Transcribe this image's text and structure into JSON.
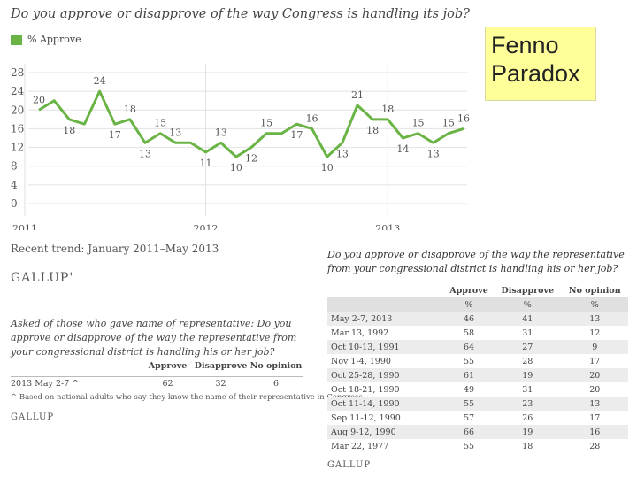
{
  "title": "Do you approve or disapprove of the way Congress is handling its job?",
  "legend_label": "% Approve",
  "recent_trend": "Recent trend: January 2011–May 2013",
  "gallup": "GALLUP",
  "gallup_reg": "GALLUP'",
  "fenno": {
    "line1": "Fenno",
    "line2": "Paradox"
  },
  "colors": {
    "line": "#6ab446",
    "grid": "#e2e2e2",
    "highlight": "#ffff99"
  },
  "chart_data": {
    "type": "line",
    "x_labels": [
      "2011",
      "2012",
      "2013"
    ],
    "y_ticks": [
      0,
      4,
      8,
      12,
      16,
      20,
      24,
      28
    ],
    "ylim": [
      0,
      28
    ],
    "grid": true,
    "series": [
      {
        "name": "% Approve",
        "values": [
          20,
          22,
          18,
          17,
          24,
          17,
          18,
          13,
          15,
          13,
          13,
          11,
          13,
          10,
          12,
          15,
          15,
          17,
          16,
          10,
          13,
          21,
          18,
          18,
          14,
          15,
          13,
          15,
          16
        ]
      }
    ],
    "labeled_points": [
      {
        "i": 0,
        "label": "20",
        "pos": "above"
      },
      {
        "i": 2,
        "label": "18",
        "pos": "below"
      },
      {
        "i": 4,
        "label": "24",
        "pos": "above"
      },
      {
        "i": 5,
        "label": "17",
        "pos": "below"
      },
      {
        "i": 6,
        "label": "18",
        "pos": "above"
      },
      {
        "i": 7,
        "label": "13",
        "pos": "below"
      },
      {
        "i": 8,
        "label": "15",
        "pos": "above"
      },
      {
        "i": 9,
        "label": "13",
        "pos": "above"
      },
      {
        "i": 11,
        "label": "11",
        "pos": "below"
      },
      {
        "i": 12,
        "label": "13",
        "pos": "above"
      },
      {
        "i": 13,
        "label": "10",
        "pos": "below"
      },
      {
        "i": 14,
        "label": "12",
        "pos": "below"
      },
      {
        "i": 15,
        "label": "15",
        "pos": "above"
      },
      {
        "i": 17,
        "label": "17",
        "pos": "below"
      },
      {
        "i": 18,
        "label": "16",
        "pos": "above"
      },
      {
        "i": 19,
        "label": "10",
        "pos": "below"
      },
      {
        "i": 20,
        "label": "13",
        "pos": "below"
      },
      {
        "i": 21,
        "label": "21",
        "pos": "above"
      },
      {
        "i": 22,
        "label": "18",
        "pos": "below"
      },
      {
        "i": 23,
        "label": "18",
        "pos": "above"
      },
      {
        "i": 24,
        "label": "14",
        "pos": "below"
      },
      {
        "i": 25,
        "label": "15",
        "pos": "above"
      },
      {
        "i": 26,
        "label": "13",
        "pos": "below"
      },
      {
        "i": 27,
        "label": "15",
        "pos": "above"
      },
      {
        "i": 28,
        "label": "16",
        "pos": "above"
      }
    ]
  },
  "left_poll": {
    "question": "Asked of those who gave name of representative: Do you approve or disapprove of the way the representative from your congressional district is handling his or her job?",
    "headers": [
      "",
      "Approve",
      "Disapprove",
      "No opinion"
    ],
    "row": [
      "2013 May 2-7 ^",
      "62",
      "32",
      "6"
    ],
    "note": "^ Based on national adults who say they know the name of their representative in Congress"
  },
  "right_poll": {
    "question": "Do you approve or disapprove of the way the representative from your congressional district is handling his or her job?",
    "headers": [
      "",
      "Approve",
      "Disapprove",
      "No opinion"
    ],
    "pct_row": [
      "",
      "%",
      "%",
      "%"
    ],
    "rows": [
      [
        "May 2-7, 2013",
        "46",
        "41",
        "13"
      ],
      [
        "Mar 13, 1992",
        "58",
        "31",
        "12"
      ],
      [
        "Oct 10-13, 1991",
        "64",
        "27",
        "9"
      ],
      [
        "Nov 1-4, 1990",
        "55",
        "28",
        "17"
      ],
      [
        "Oct 25-28, 1990",
        "61",
        "19",
        "20"
      ],
      [
        "Oct 18-21, 1990",
        "49",
        "31",
        "20"
      ],
      [
        "Oct 11-14, 1990",
        "55",
        "23",
        "13"
      ],
      [
        "Sep 11-12, 1990",
        "57",
        "26",
        "17"
      ],
      [
        "Aug 9-12, 1990",
        "66",
        "19",
        "16"
      ],
      [
        "Mar 22, 1977",
        "55",
        "18",
        "28"
      ]
    ]
  }
}
